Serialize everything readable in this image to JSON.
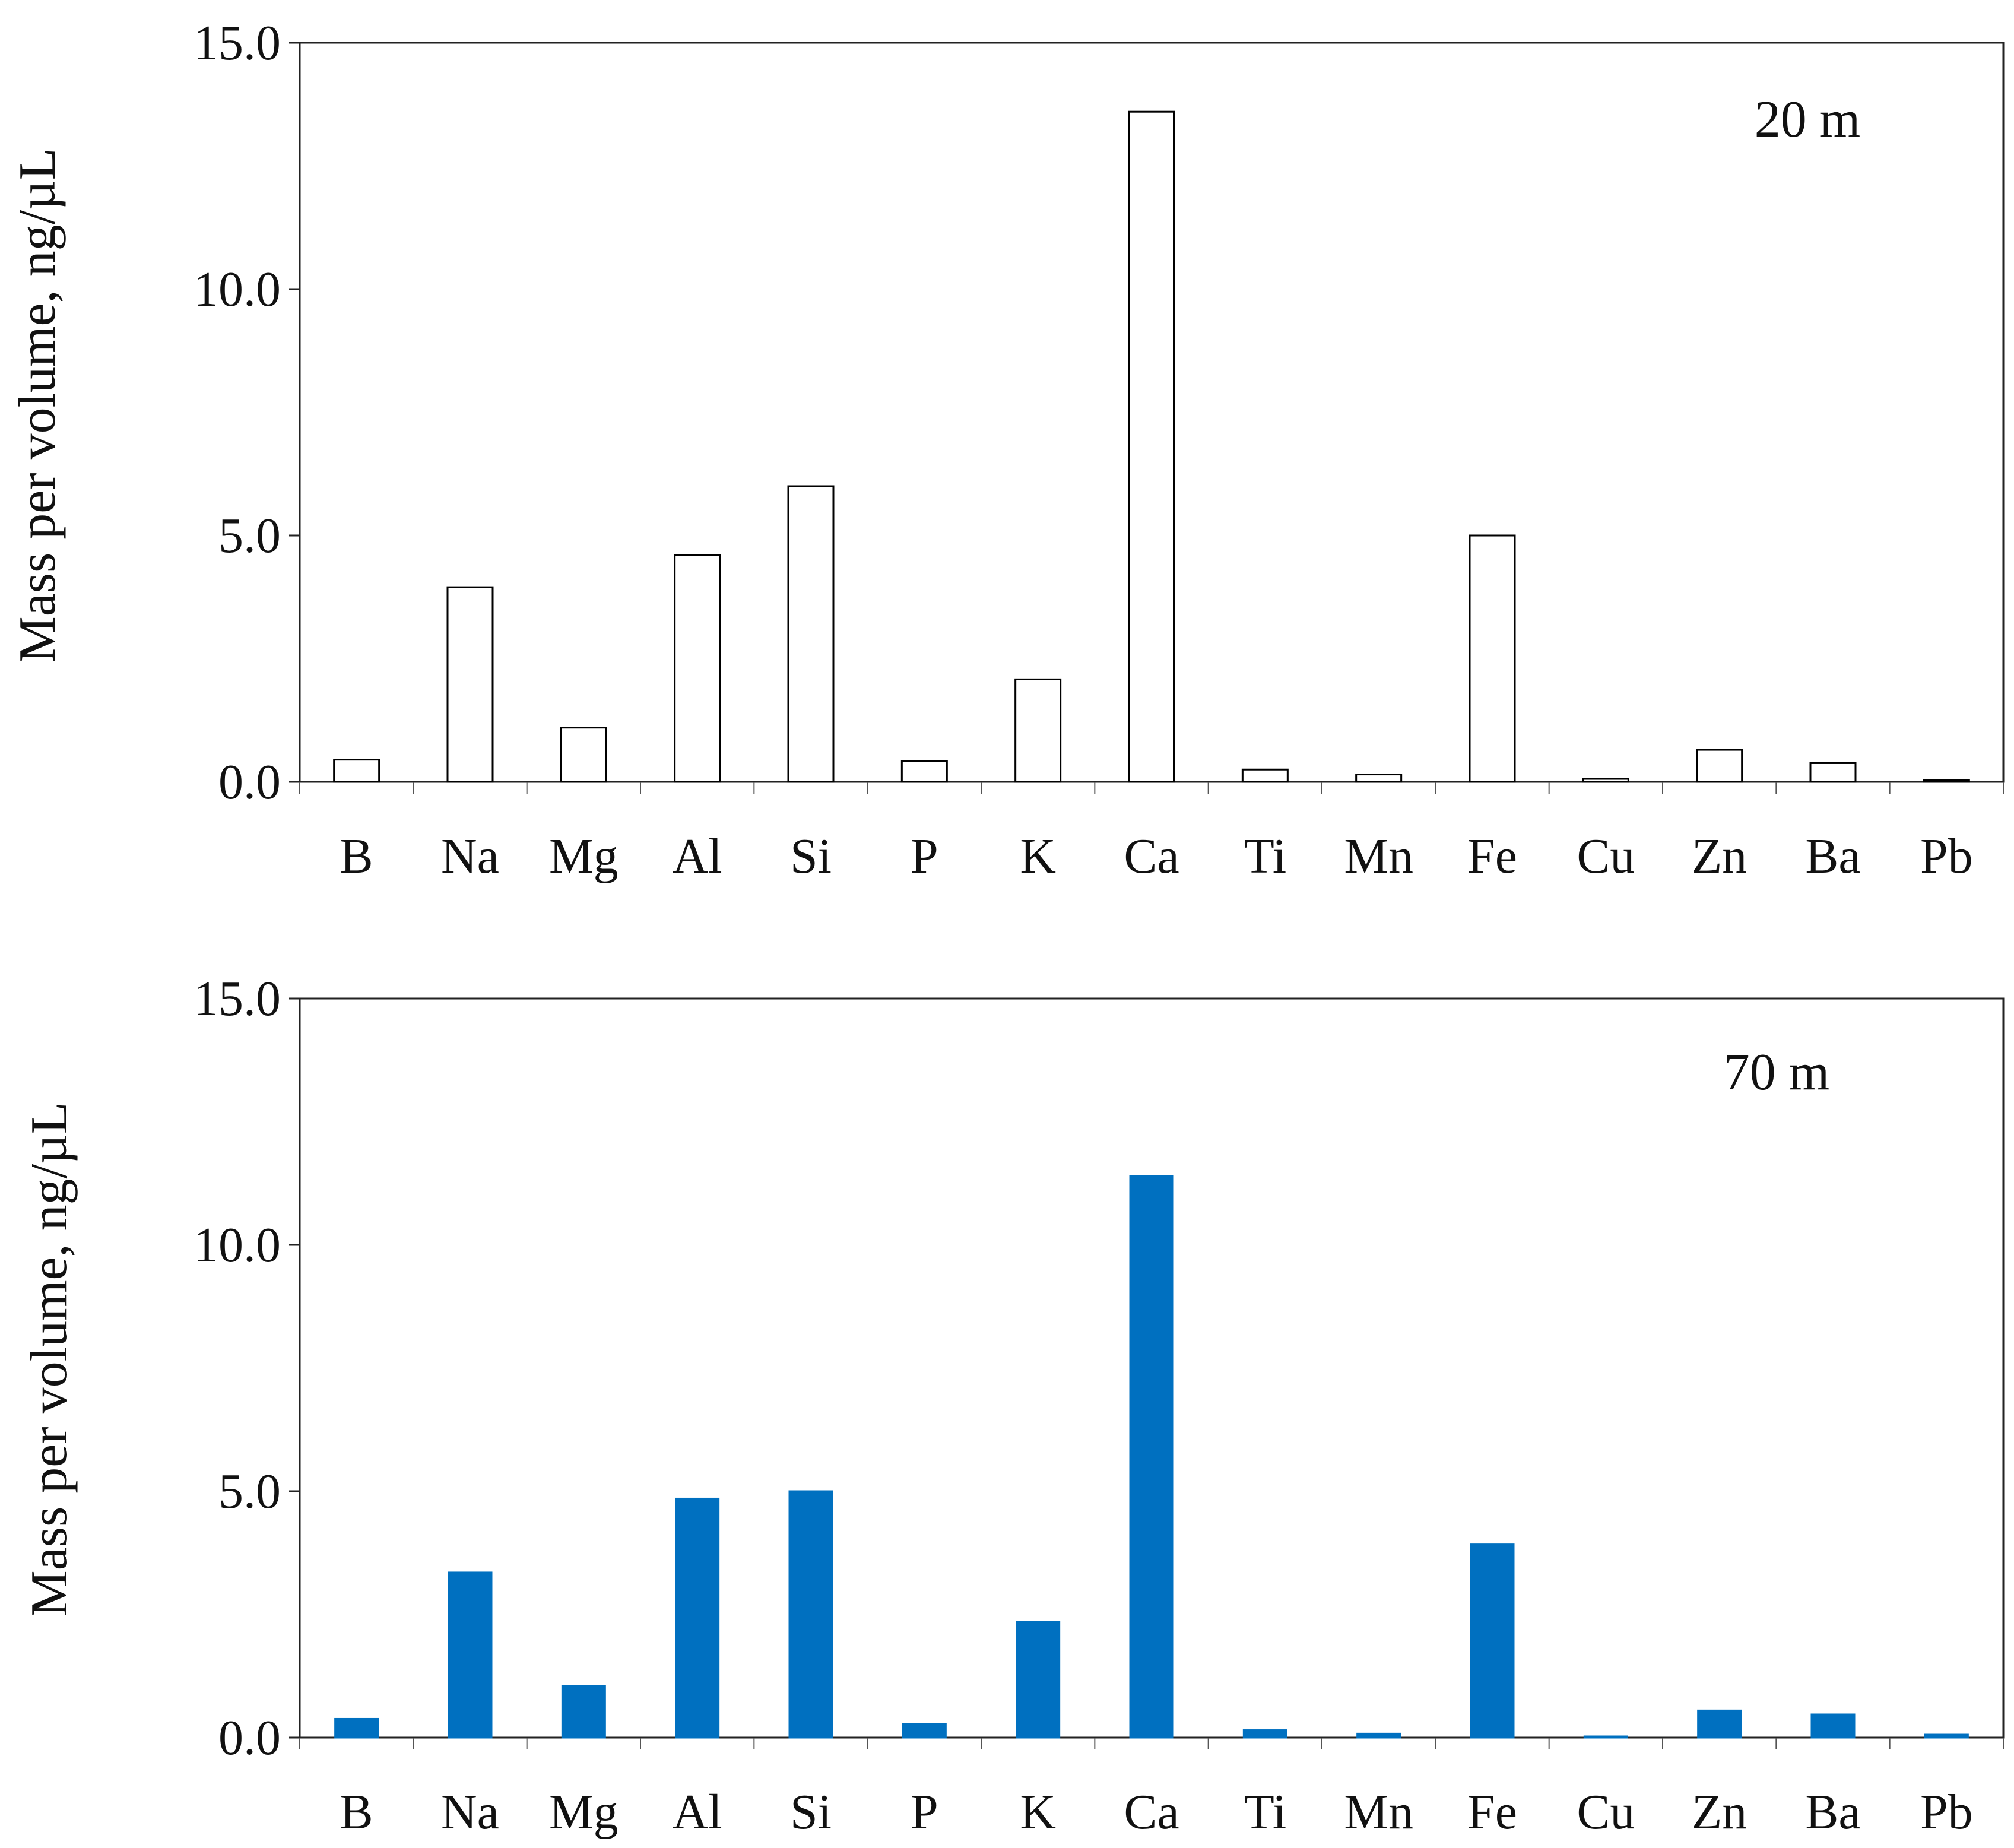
{
  "chart_data": [
    {
      "type": "bar",
      "panel_label": "20 m",
      "ylabel": "Mass per volume, ng/µL",
      "xlabel": "",
      "ylim": [
        0,
        15
      ],
      "yticks": [
        "0.0",
        "5.0",
        "10.0",
        "15.0"
      ],
      "grid": false,
      "categories": [
        "B",
        "Na",
        "Mg",
        "Al",
        "Si",
        "P",
        "K",
        "Ca",
        "Ti",
        "Mn",
        "Fe",
        "Cu",
        "Zn",
        "Ba",
        "Pb"
      ],
      "series": [
        {
          "values": [
            0.45,
            3.95,
            1.1,
            4.6,
            6.0,
            0.42,
            2.08,
            13.6,
            0.25,
            0.15,
            5.0,
            0.06,
            0.65,
            0.38,
            0.03
          ],
          "fill": "#ffffff",
          "stroke": "#000000"
        }
      ]
    },
    {
      "type": "bar",
      "panel_label": "70 m",
      "ylabel": "Mass per volume, ng/µL",
      "xlabel": "",
      "ylim": [
        0,
        15
      ],
      "yticks": [
        "0.0",
        "5.0",
        "10.0",
        "15.0"
      ],
      "grid": false,
      "categories": [
        "B",
        "Na",
        "Mg",
        "Al",
        "Si",
        "P",
        "K",
        "Ca",
        "Ti",
        "Mn",
        "Fe",
        "Cu",
        "Zn",
        "Ba",
        "Pb"
      ],
      "series": [
        {
          "values": [
            0.38,
            3.35,
            1.05,
            4.85,
            5.0,
            0.28,
            2.35,
            11.4,
            0.15,
            0.08,
            3.92,
            0.02,
            0.55,
            0.47,
            0.06
          ],
          "fill": "#0070c0",
          "stroke": "#0070c0"
        }
      ]
    }
  ]
}
